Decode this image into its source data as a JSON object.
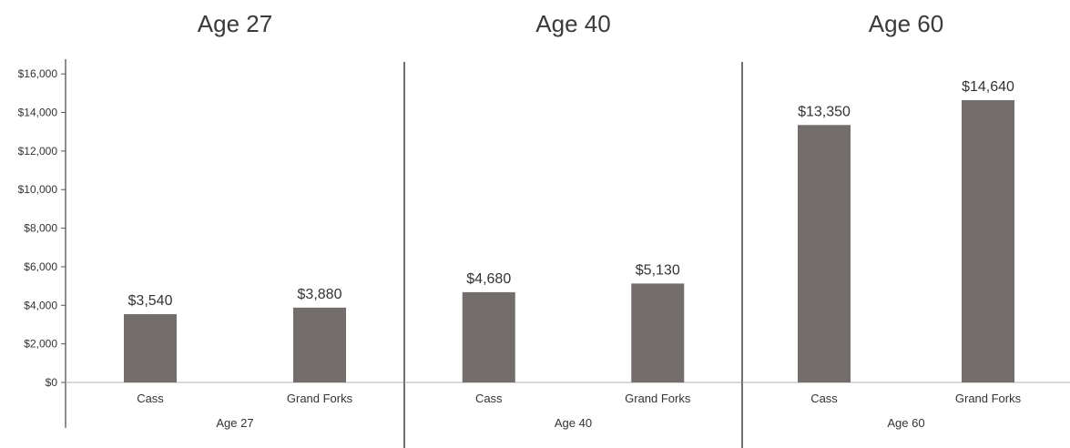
{
  "chart_data": {
    "type": "bar",
    "yticks": [
      "$0",
      "$2,000",
      "$4,000",
      "$6,000",
      "$8,000",
      "$10,000",
      "$12,000",
      "$14,000",
      "$16,000"
    ],
    "ylim": [
      0,
      17000
    ],
    "grid": false,
    "bar_color": "#736e6c",
    "panels": [
      {
        "title": "Age 27",
        "group_label": "Age 27",
        "categories": [
          "Cass",
          "Grand Forks"
        ],
        "values": [
          3540,
          3880
        ],
        "labels": [
          "$3,540",
          "$3,880"
        ]
      },
      {
        "title": "Age 40",
        "group_label": "Age 40",
        "categories": [
          "Cass",
          "Grand Forks"
        ],
        "values": [
          4680,
          5130
        ],
        "labels": [
          "$4,680",
          "$5,130"
        ]
      },
      {
        "title": "Age 60",
        "group_label": "Age 60",
        "categories": [
          "Cass",
          "Grand Forks"
        ],
        "values": [
          13350,
          14640
        ],
        "labels": [
          "$13,350",
          "$14,640"
        ]
      }
    ]
  }
}
